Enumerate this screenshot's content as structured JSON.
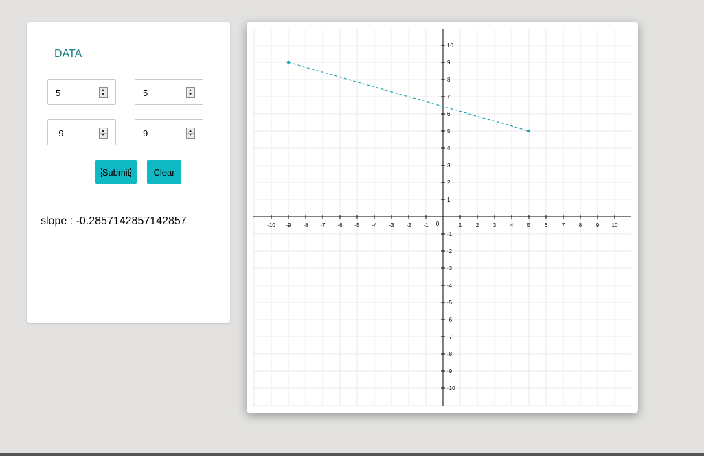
{
  "panel": {
    "title": "DATA",
    "x1": "5",
    "y1": "5",
    "x2": "-9",
    "y2": "9",
    "submit_label": "Submit",
    "clear_label": "Clear",
    "slope_text": "slope : -0.2857142857142857"
  },
  "chart_data": {
    "type": "line",
    "xlim": [
      -10,
      10
    ],
    "ylim": [
      -10,
      10
    ],
    "grid": true,
    "x_ticks": [
      -10,
      -9,
      -8,
      -7,
      -6,
      -5,
      -4,
      -3,
      -2,
      -1,
      1,
      2,
      3,
      4,
      5,
      6,
      7,
      8,
      9,
      10
    ],
    "y_ticks": [
      -10,
      -9,
      -8,
      -7,
      -6,
      -5,
      -4,
      -3,
      -2,
      -1,
      1,
      2,
      3,
      4,
      5,
      6,
      7,
      8,
      9,
      10
    ],
    "origin_label": "0",
    "points": [
      {
        "x": -9,
        "y": 9
      },
      {
        "x": 5,
        "y": 5
      }
    ],
    "line_style": "dashed",
    "color": "#1aa3ad"
  }
}
